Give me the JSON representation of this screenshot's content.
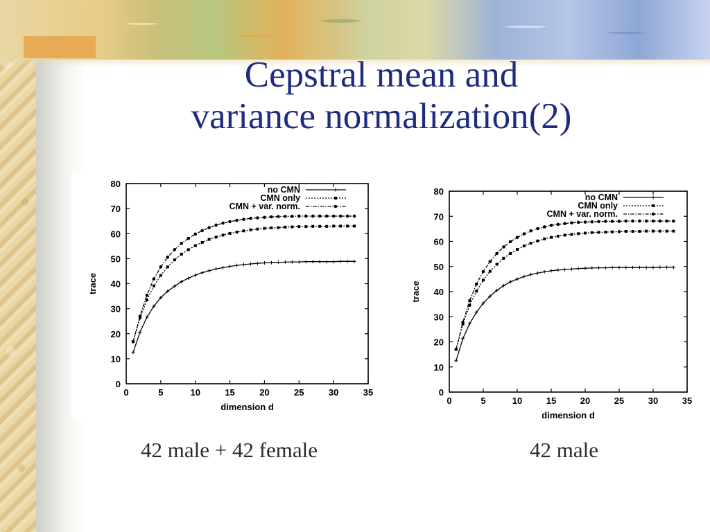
{
  "slide": {
    "title_line1": "Cepstral mean and",
    "title_line2": "variance normalization(2)",
    "caption_left": "42 male + 42 female",
    "caption_right": "42 male"
  },
  "colors": {
    "title": "#1f2c7e",
    "plot_ink": "#000000"
  },
  "chart_data": [
    {
      "type": "line",
      "xlabel": "dimension d",
      "ylabel": "trace",
      "xlim": [
        0,
        35
      ],
      "ylim": [
        0,
        80
      ],
      "xticks": [
        0,
        5,
        10,
        15,
        20,
        25,
        30,
        35
      ],
      "yticks": [
        0,
        10,
        20,
        30,
        40,
        50,
        60,
        70,
        80
      ],
      "grid": false,
      "legend_position": "top-right",
      "x": [
        1,
        2,
        3,
        4,
        5,
        6,
        7,
        8,
        9,
        10,
        11,
        12,
        13,
        14,
        15,
        16,
        17,
        18,
        19,
        20,
        21,
        22,
        23,
        24,
        25,
        26,
        27,
        28,
        29,
        30,
        31,
        32,
        33
      ],
      "series": [
        {
          "name": "no CMN",
          "style": "solid",
          "marker": "plus",
          "values": [
            12.5,
            20.6,
            26.6,
            31.0,
            34.4,
            37.0,
            39.0,
            40.8,
            42.2,
            43.4,
            44.4,
            45.2,
            45.9,
            46.4,
            46.9,
            47.3,
            47.6,
            47.9,
            48.1,
            48.3,
            48.4,
            48.5,
            48.6,
            48.7,
            48.7,
            48.8,
            48.8,
            48.8,
            48.8,
            48.8,
            48.9,
            48.9,
            48.9
          ]
        },
        {
          "name": "CMN only",
          "style": "dotted",
          "marker": "square",
          "values": [
            16.8,
            26.3,
            33.5,
            39.1,
            43.3,
            46.7,
            49.5,
            51.8,
            53.6,
            55.2,
            56.5,
            57.7,
            58.6,
            59.4,
            60.1,
            60.6,
            61.1,
            61.5,
            61.8,
            62.1,
            62.3,
            62.4,
            62.6,
            62.7,
            62.8,
            62.8,
            62.9,
            62.9,
            62.9,
            63.0,
            63.0,
            63.0,
            63.0
          ]
        },
        {
          "name": "CMN + var. norm.",
          "style": "dash-dot",
          "marker": "circle",
          "values": [
            16.8,
            27.0,
            35.4,
            41.9,
            46.7,
            50.6,
            53.6,
            56.1,
            58.1,
            59.8,
            61.2,
            62.4,
            63.4,
            64.2,
            64.8,
            65.3,
            65.7,
            66.1,
            66.3,
            66.5,
            66.7,
            66.8,
            66.9,
            66.9,
            67.0,
            67.0,
            67.0,
            67.0,
            67.0,
            67.0,
            67.0,
            67.0,
            67.0
          ]
        }
      ]
    },
    {
      "type": "line",
      "xlabel": "dimension d",
      "ylabel": "trace",
      "xlim": [
        0,
        35
      ],
      "ylim": [
        0,
        80
      ],
      "xticks": [
        0,
        5,
        10,
        15,
        20,
        25,
        30,
        35
      ],
      "yticks": [
        0,
        10,
        20,
        30,
        40,
        50,
        60,
        70,
        80
      ],
      "grid": false,
      "legend_position": "top-right",
      "x": [
        1,
        2,
        3,
        4,
        5,
        6,
        7,
        8,
        9,
        10,
        11,
        12,
        13,
        14,
        15,
        16,
        17,
        18,
        19,
        20,
        21,
        22,
        23,
        24,
        25,
        26,
        27,
        28,
        29,
        30,
        31,
        32,
        33
      ],
      "series": [
        {
          "name": "no CMN",
          "style": "solid",
          "marker": "plus",
          "values": [
            12.5,
            21.3,
            27.3,
            31.8,
            35.4,
            38.2,
            40.5,
            42.4,
            43.9,
            45.0,
            46.0,
            46.8,
            47.4,
            47.9,
            48.3,
            48.6,
            48.8,
            49.0,
            49.2,
            49.3,
            49.4,
            49.5,
            49.5,
            49.6,
            49.6,
            49.6,
            49.6,
            49.6,
            49.6,
            49.6,
            49.7,
            49.7,
            49.7
          ]
        },
        {
          "name": "CMN only",
          "style": "dotted",
          "marker": "square",
          "values": [
            17.0,
            27.1,
            34.6,
            40.2,
            44.6,
            48.1,
            50.9,
            53.3,
            55.2,
            56.8,
            58.2,
            59.3,
            60.2,
            61.0,
            61.6,
            62.1,
            62.5,
            62.8,
            63.1,
            63.3,
            63.5,
            63.6,
            63.7,
            63.8,
            63.9,
            64.0,
            64.0,
            64.0,
            64.1,
            64.1,
            64.1,
            64.1,
            64.1
          ]
        },
        {
          "name": "CMN + var. norm.",
          "style": "dash-dot",
          "marker": "circle",
          "values": [
            17.0,
            27.8,
            36.4,
            43.0,
            48.0,
            52.0,
            55.2,
            57.8,
            59.9,
            61.6,
            63.0,
            64.2,
            65.1,
            65.8,
            66.4,
            66.8,
            67.1,
            67.4,
            67.6,
            67.7,
            67.8,
            67.9,
            68.0,
            68.0,
            68.0,
            68.1,
            68.1,
            68.1,
            68.1,
            68.1,
            68.1,
            68.1,
            68.1
          ]
        }
      ]
    }
  ]
}
